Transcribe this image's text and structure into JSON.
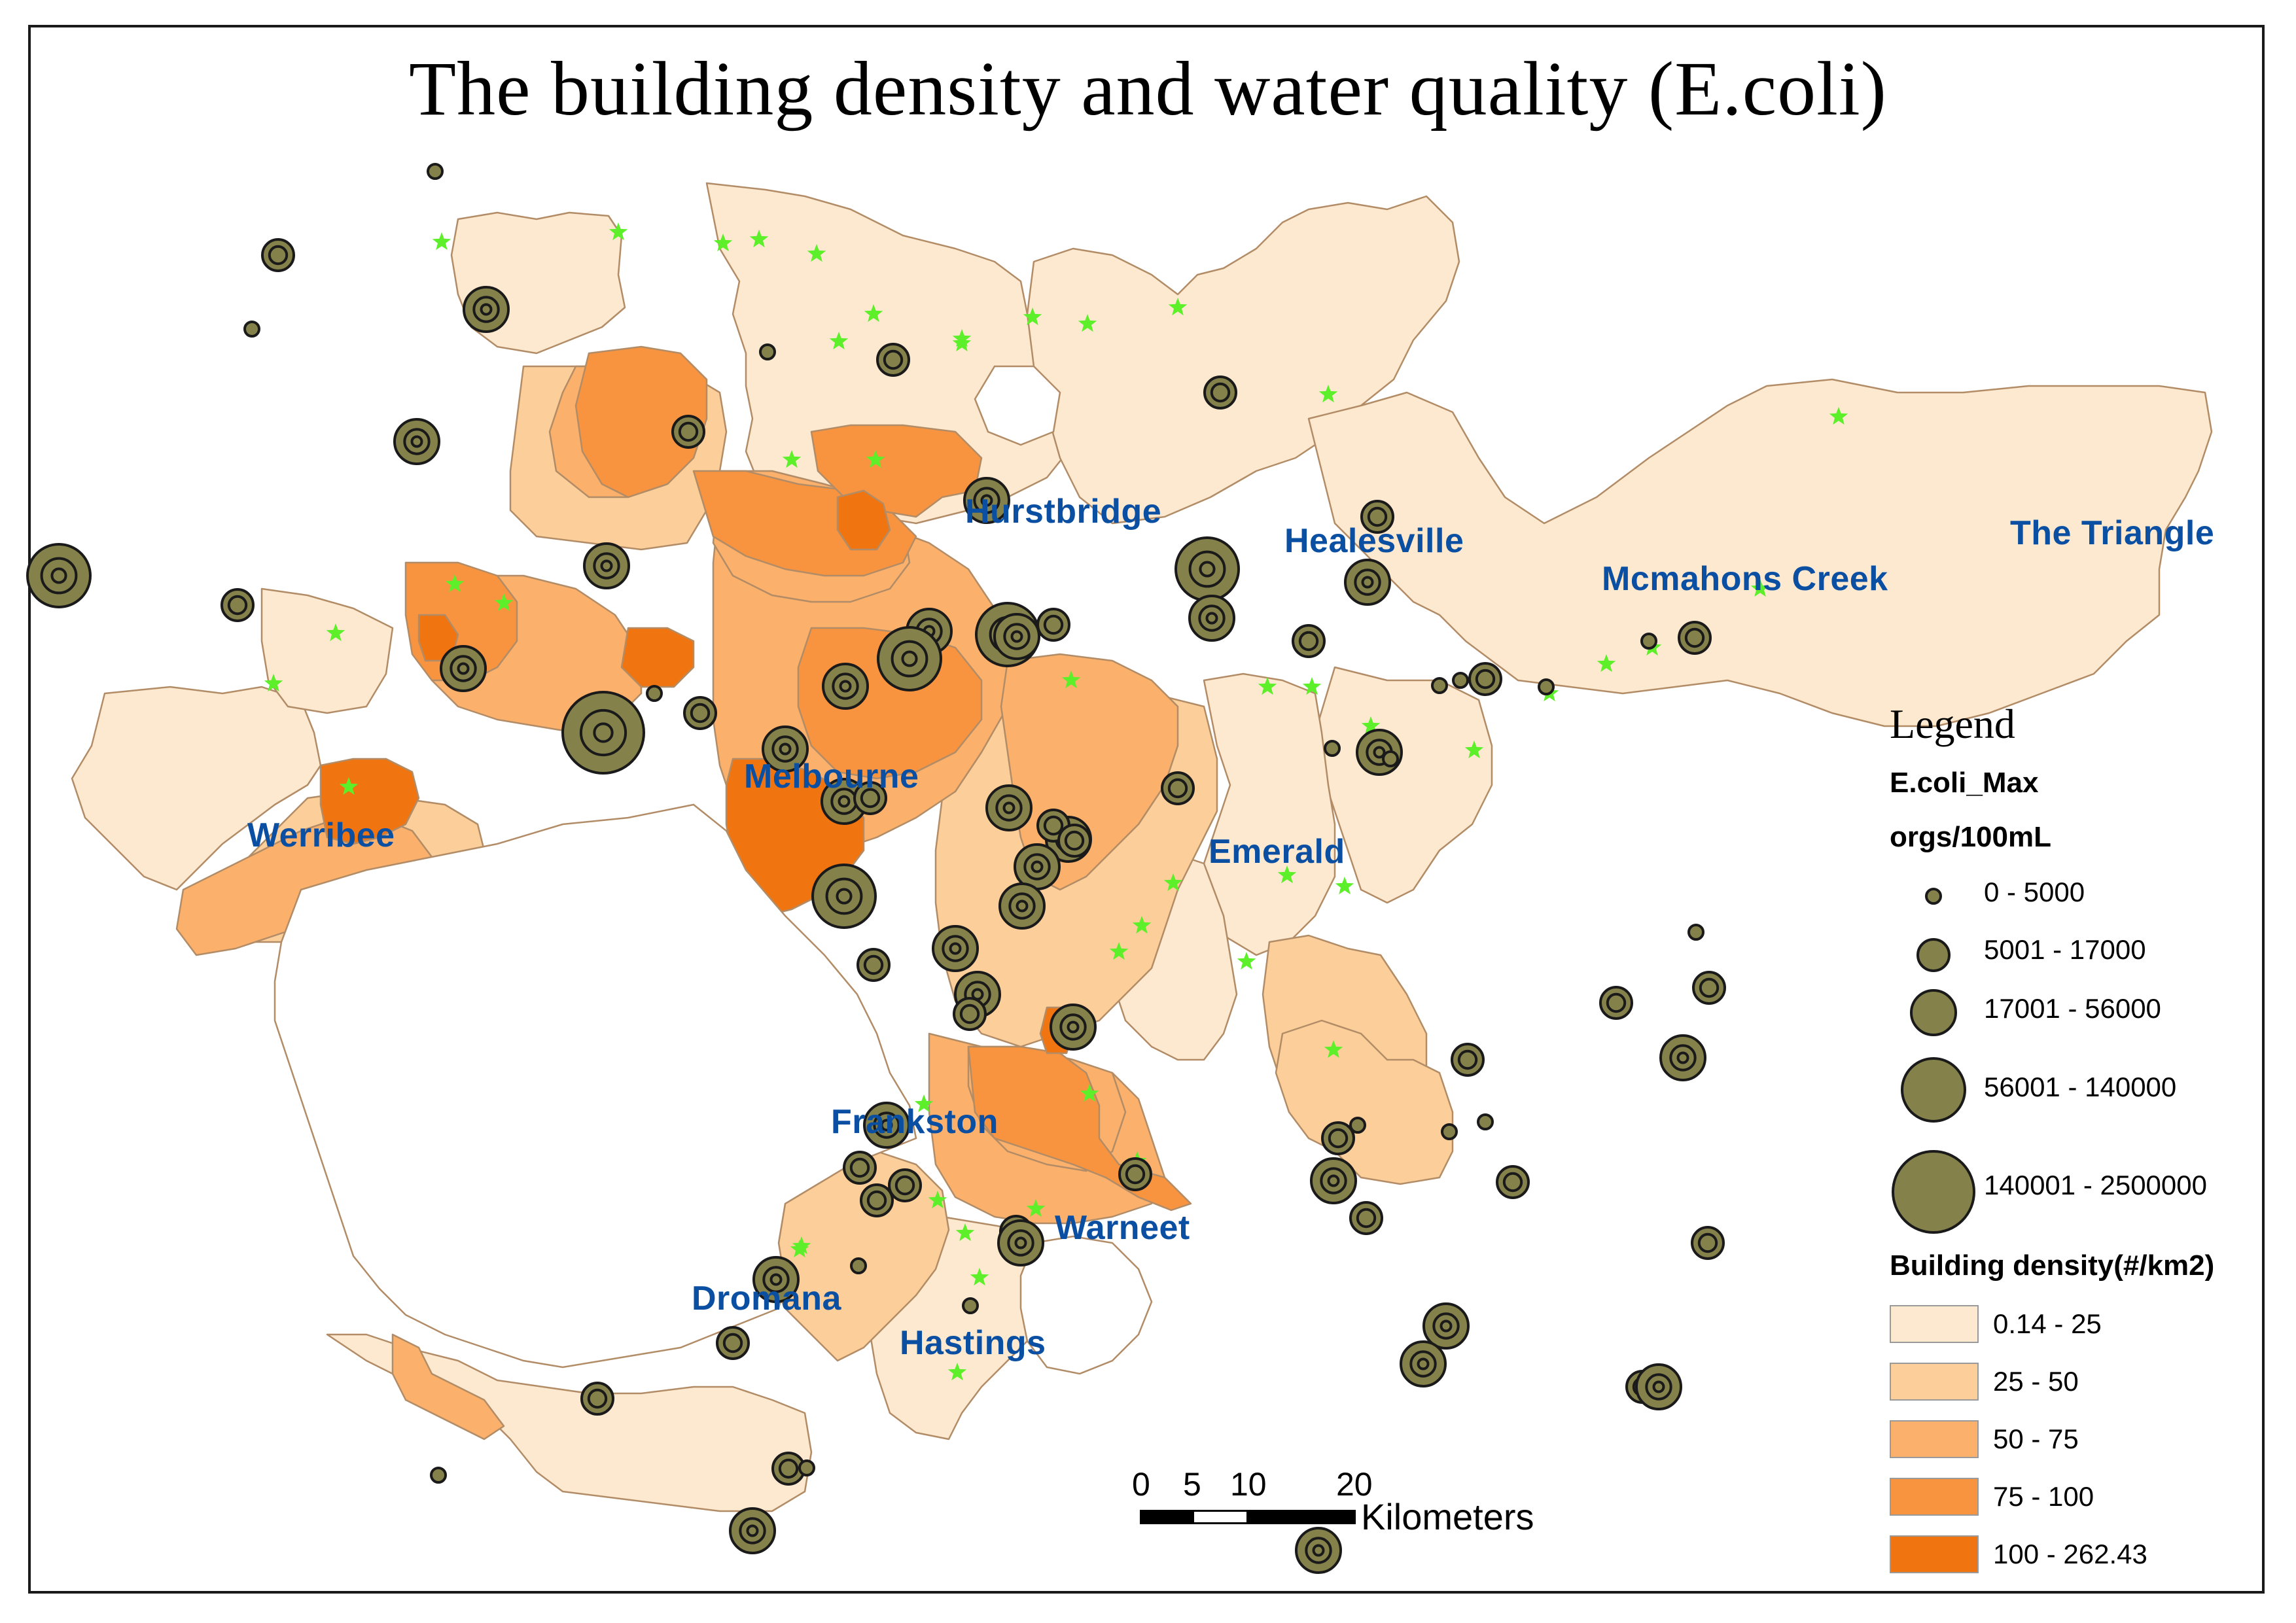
{
  "title": "The building density and water quality (E.coli)",
  "places": [
    {
      "name": "Hurstbridge"
    },
    {
      "name": "Healesville"
    },
    {
      "name": "The Triangle"
    },
    {
      "name": "Mcmahons Creek"
    },
    {
      "name": "Melbourne"
    },
    {
      "name": "Werribee"
    },
    {
      "name": "Emerald"
    },
    {
      "name": "Frankston"
    },
    {
      "name": "Warneet"
    },
    {
      "name": "Dromana"
    },
    {
      "name": "Hastings"
    }
  ],
  "legend": {
    "title": "Legend",
    "ecoli_heading": "E.coli_Max",
    "ecoli_units": "orgs/100mL",
    "ecoli_classes": [
      {
        "label": "0 - 5000",
        "rank": 1
      },
      {
        "label": "5001 - 17000",
        "rank": 2
      },
      {
        "label": "17001 - 56000",
        "rank": 3
      },
      {
        "label": "56001 - 140000",
        "rank": 4
      },
      {
        "label": "140001 - 2500000",
        "rank": 5
      }
    ],
    "density_heading": "Building density(#/km2)",
    "density_classes": [
      {
        "label": "0.14 - 25",
        "color": "#fde9cf"
      },
      {
        "label": "25 - 50",
        "color": "#fccf9a"
      },
      {
        "label": "50 - 75",
        "color": "#fbb06b"
      },
      {
        "label": "75 - 100",
        "color": "#f8943f"
      },
      {
        "label": "100 - 262.43",
        "color": "#f07510"
      }
    ]
  },
  "scalebar": {
    "ticks": [
      "0",
      "5",
      "10",
      "20"
    ],
    "units": "Kilometers"
  },
  "colors": {
    "circle_fill": "#84814a",
    "circle_stroke": "#1a1a1a",
    "star": "#5cef2a",
    "region_stroke": "#b28c66",
    "label": "#0b4fa3"
  },
  "monitoring_sites": [
    {
      "rank": 1
    },
    {
      "rank": 1
    },
    {
      "rank": 2
    },
    {
      "rank": 3
    },
    {
      "rank": 4
    },
    {
      "rank": 1
    },
    {
      "rank": 2
    },
    {
      "rank": 3
    },
    {
      "rank": 2
    },
    {
      "rank": 4
    },
    {
      "rank": 5
    },
    {
      "rank": 3
    },
    {
      "rank": 2
    },
    {
      "rank": 4
    },
    {
      "rank": 4
    },
    {
      "rank": 3
    },
    {
      "rank": 3
    },
    {
      "rank": 2
    },
    {
      "rank": 1
    },
    {
      "rank": 2
    },
    {
      "rank": 3
    },
    {
      "rank": 3
    },
    {
      "rank": 4
    },
    {
      "rank": 3
    },
    {
      "rank": 2
    },
    {
      "rank": 3
    },
    {
      "rank": 2
    },
    {
      "rank": 2
    },
    {
      "rank": 3
    },
    {
      "rank": 3
    },
    {
      "rank": 3
    },
    {
      "rank": 3
    },
    {
      "rank": 2
    },
    {
      "rank": 3
    },
    {
      "rank": 2
    },
    {
      "rank": 3
    },
    {
      "rank": 2
    },
    {
      "rank": 2
    },
    {
      "rank": 3
    },
    {
      "rank": 3
    },
    {
      "rank": 3
    },
    {
      "rank": 2
    },
    {
      "rank": 3
    },
    {
      "rank": 2
    },
    {
      "rank": 3
    },
    {
      "rank": 2
    },
    {
      "rank": 1
    },
    {
      "rank": 1
    },
    {
      "rank": 2
    },
    {
      "rank": 2
    },
    {
      "rank": 1
    },
    {
      "rank": 2
    },
    {
      "rank": 3
    },
    {
      "rank": 3
    },
    {
      "rank": 2
    },
    {
      "rank": 2
    },
    {
      "rank": 2
    },
    {
      "rank": 3
    },
    {
      "rank": 3
    },
    {
      "rank": 2
    },
    {
      "rank": 3
    },
    {
      "rank": 3
    },
    {
      "rank": 3
    },
    {
      "rank": 2
    },
    {
      "rank": 2
    },
    {
      "rank": 2
    },
    {
      "rank": 3
    },
    {
      "rank": 2
    },
    {
      "rank": 2
    },
    {
      "rank": 1
    },
    {
      "rank": 1
    },
    {
      "rank": 3
    },
    {
      "rank": 2
    },
    {
      "rank": 1
    },
    {
      "rank": 1
    },
    {
      "rank": 1
    },
    {
      "rank": 1
    },
    {
      "rank": 1
    },
    {
      "rank": 2
    },
    {
      "rank": 2
    },
    {
      "rank": 1
    },
    {
      "rank": 2
    },
    {
      "rank": 1
    },
    {
      "rank": 1
    },
    {
      "rank": 1
    },
    {
      "rank": 3
    },
    {
      "rank": 2
    }
  ]
}
